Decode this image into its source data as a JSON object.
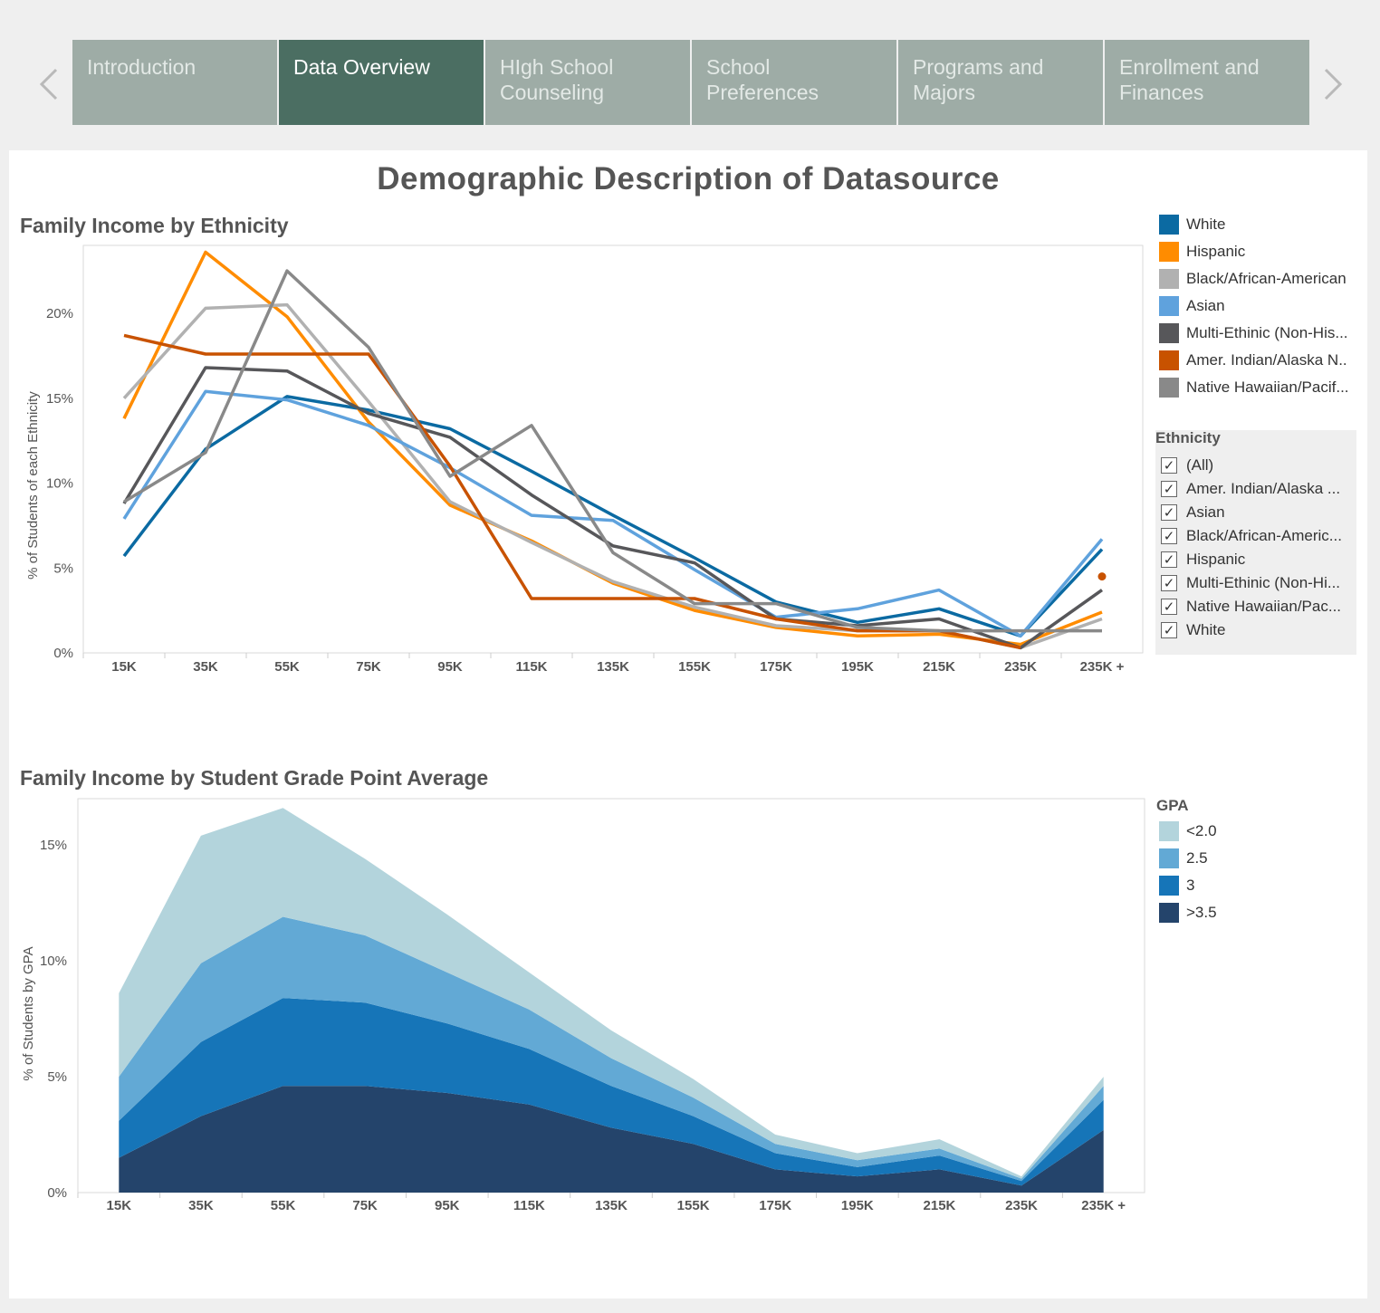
{
  "nav": {
    "prev_icon": "chevron-left-icon",
    "next_icon": "chevron-right-icon",
    "tabs": [
      {
        "label": "Introduction",
        "active": false
      },
      {
        "label": "Data Overview",
        "active": true
      },
      {
        "label": "HIgh School Counseling",
        "active": false
      },
      {
        "label": "School Preferences",
        "active": false
      },
      {
        "label": "Programs and Majors",
        "active": false
      },
      {
        "label": "Enrollment and Finances",
        "active": false
      }
    ]
  },
  "dashboard": {
    "title": "Demographic Description of Datasource"
  },
  "ethnicity_filter": {
    "title": "Ethnicity",
    "items": [
      {
        "label": "(All)",
        "checked": true
      },
      {
        "label": "Amer. Indian/Alaska ...",
        "checked": true
      },
      {
        "label": "Asian",
        "checked": true
      },
      {
        "label": "Black/African-Americ...",
        "checked": true
      },
      {
        "label": "Hispanic",
        "checked": true
      },
      {
        "label": "Multi-Ethinic (Non-Hi...",
        "checked": true
      },
      {
        "label": "Native Hawaiian/Pac...",
        "checked": true
      },
      {
        "label": "White",
        "checked": true
      }
    ]
  },
  "chart_data": [
    {
      "type": "line",
      "title": "Family Income by Ethnicity",
      "xlabel": "",
      "ylabel": "% of Students of each Ethnicity",
      "categories": [
        "15K",
        "35K",
        "55K",
        "75K",
        "95K",
        "115K",
        "135K",
        "155K",
        "175K",
        "195K",
        "215K",
        "235K",
        "235K +"
      ],
      "ylim": [
        0,
        24
      ],
      "yticks": [
        "0%",
        "5%",
        "10%",
        "15%",
        "20%"
      ],
      "legend_position": "right",
      "series": [
        {
          "name": "White",
          "color": "#0b6aa2",
          "values": [
            5.7,
            12.0,
            15.1,
            14.3,
            13.2,
            10.7,
            8.1,
            5.6,
            3.0,
            1.8,
            2.6,
            1.0,
            6.1
          ]
        },
        {
          "name": "Hispanic",
          "color": "#ff8c00",
          "values": [
            13.8,
            23.6,
            19.8,
            13.6,
            8.7,
            6.6,
            4.1,
            2.5,
            1.5,
            1.0,
            1.1,
            0.5,
            2.4
          ]
        },
        {
          "name": "Black/African-American",
          "color": "#b1b1b1",
          "values": [
            15.0,
            20.3,
            20.5,
            14.8,
            8.9,
            6.5,
            4.2,
            2.7,
            1.6,
            1.3,
            1.3,
            0.3,
            2.0
          ]
        },
        {
          "name": "Asian",
          "color": "#5fa2dd",
          "values": [
            7.9,
            15.4,
            14.9,
            13.4,
            10.9,
            8.1,
            7.8,
            4.9,
            2.1,
            2.6,
            3.7,
            1.0,
            6.7
          ]
        },
        {
          "name": "Multi-Ethinic (Non-His...",
          "color": "#57575a",
          "values": [
            8.8,
            16.8,
            16.6,
            14.1,
            12.7,
            9.3,
            6.3,
            5.3,
            2.0,
            1.6,
            2.0,
            0.3,
            3.7
          ]
        },
        {
          "name": "Amer. Indian/Alaska N..",
          "color": "#c85200",
          "values": [
            18.7,
            17.6,
            17.6,
            17.6,
            11.0,
            3.2,
            3.2,
            3.2,
            2.0,
            1.3,
            1.3,
            0.3,
            null
          ]
        },
        {
          "name": "Native Hawaiian/Pacif...",
          "color": "#898989",
          "values": [
            8.9,
            11.8,
            22.5,
            18.0,
            10.4,
            13.4,
            5.9,
            2.9,
            2.9,
            1.5,
            1.3,
            1.3,
            1.3
          ]
        }
      ],
      "extra_points": [
        {
          "series": "Amer. Indian/Alaska N..",
          "x": "235K +",
          "y": 4.5
        }
      ]
    },
    {
      "type": "area",
      "stacked": true,
      "title": "Family Income by Student Grade Point Average",
      "xlabel": "",
      "ylabel": "% of Students by GPA",
      "legend_title": "GPA",
      "categories": [
        "15K",
        "35K",
        "55K",
        "75K",
        "95K",
        "115K",
        "135K",
        "155K",
        "175K",
        "195K",
        "215K",
        "235K",
        "235K +"
      ],
      "ylim": [
        0,
        17
      ],
      "yticks": [
        "0%",
        "5%",
        "10%",
        "15%"
      ],
      "legend_position": "right",
      "series": [
        {
          "name": ">3.5",
          "color": "#24446b",
          "values": [
            1.5,
            3.3,
            4.6,
            4.6,
            4.3,
            3.8,
            2.8,
            2.1,
            1.0,
            0.7,
            1.0,
            0.3,
            2.7
          ]
        },
        {
          "name": "3",
          "color": "#1675b8",
          "values": [
            1.6,
            3.2,
            3.8,
            3.6,
            3.0,
            2.4,
            1.8,
            1.2,
            0.7,
            0.4,
            0.6,
            0.2,
            1.3
          ]
        },
        {
          "name": "2.5",
          "color": "#62a9d5",
          "values": [
            1.9,
            3.4,
            3.5,
            2.9,
            2.2,
            1.7,
            1.2,
            0.8,
            0.4,
            0.3,
            0.3,
            0.1,
            0.6
          ]
        },
        {
          "name": "<2.0",
          "color": "#b3d4dc",
          "values": [
            3.6,
            5.5,
            4.7,
            3.3,
            2.5,
            1.6,
            1.2,
            0.8,
            0.4,
            0.3,
            0.4,
            0.1,
            0.4
          ]
        }
      ]
    }
  ]
}
